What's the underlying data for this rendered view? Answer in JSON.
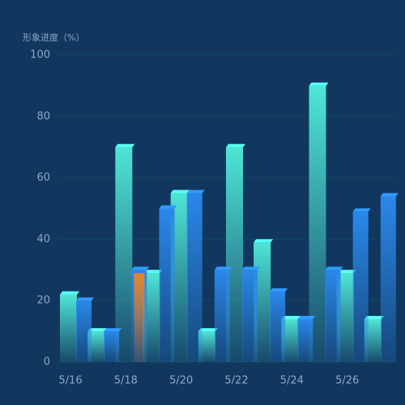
{
  "chart_data": {
    "type": "bar",
    "y_axis_label": "形象进度（%）",
    "categories": [
      "5/16",
      null,
      "5/18",
      null,
      "5/20",
      null,
      "5/22",
      null,
      "5/24",
      null,
      "5/26",
      null
    ],
    "series": [
      {
        "color": "#4fe6d6",
        "values": [
          22,
          10,
          70,
          29,
          55,
          10,
          70,
          39,
          14,
          90,
          29,
          14
        ]
      },
      {
        "color": "#2a88ea",
        "values": [
          20,
          10,
          30,
          50,
          55,
          30,
          30,
          23,
          14,
          30,
          49,
          54
        ],
        "highlight_index": 2,
        "highlight_color": "#e8842a"
      }
    ],
    "ylim": [
      0,
      100
    ],
    "yticks": [
      0,
      20,
      40,
      60,
      80,
      100
    ],
    "grid": true
  }
}
